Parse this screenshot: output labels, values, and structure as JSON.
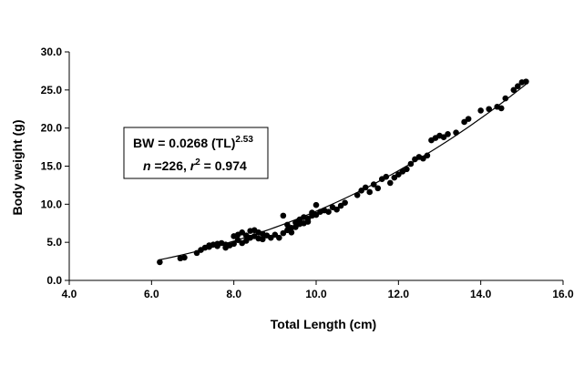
{
  "chart_data": {
    "type": "scatter",
    "xlabel": "Total Length (cm)",
    "ylabel": "Body weight (g)",
    "xlim": [
      4.0,
      16.0
    ],
    "ylim": [
      0.0,
      30.0
    ],
    "xticks": [
      "4.0",
      "6.0",
      "8.0",
      "10.0",
      "12.0",
      "14.0",
      "16.0"
    ],
    "yticks": [
      "0.0",
      "5.0",
      "10.0",
      "15.0",
      "20.0",
      "25.0",
      "30.0"
    ],
    "grid": false,
    "marker_color": "#000000",
    "annotation": {
      "line1": "BW = 0.0268 (TL)",
      "line1_exp": "2.53",
      "n_label": "n",
      "n_value": " =226, ",
      "r_label": "r",
      "r_exp": "2",
      "r_value": " = 0.974"
    },
    "fit": {
      "type": "power",
      "a": 0.0268,
      "b": 2.53,
      "x_range": [
        6.2,
        15.1
      ]
    },
    "points": [
      [
        6.2,
        2.4
      ],
      [
        6.7,
        2.9
      ],
      [
        6.8,
        3.0
      ],
      [
        7.1,
        3.6
      ],
      [
        7.2,
        4.0
      ],
      [
        7.3,
        4.3
      ],
      [
        7.4,
        4.6
      ],
      [
        7.4,
        4.4
      ],
      [
        7.5,
        4.7
      ],
      [
        7.6,
        4.5
      ],
      [
        7.6,
        4.8
      ],
      [
        7.7,
        4.9
      ],
      [
        7.8,
        4.7
      ],
      [
        7.8,
        4.3
      ],
      [
        7.9,
        4.6
      ],
      [
        8.0,
        4.8
      ],
      [
        8.0,
        5.8
      ],
      [
        8.1,
        6.0
      ],
      [
        8.1,
        5.3
      ],
      [
        8.2,
        4.9
      ],
      [
        8.2,
        6.3
      ],
      [
        8.3,
        5.9
      ],
      [
        8.3,
        5.2
      ],
      [
        8.4,
        6.5
      ],
      [
        8.4,
        5.6
      ],
      [
        8.5,
        6.6
      ],
      [
        8.5,
        5.8
      ],
      [
        8.6,
        6.3
      ],
      [
        8.6,
        5.5
      ],
      [
        8.7,
        6.1
      ],
      [
        8.7,
        5.4
      ],
      [
        8.8,
        5.9
      ],
      [
        8.9,
        5.6
      ],
      [
        9.0,
        6.0
      ],
      [
        9.1,
        5.6
      ],
      [
        9.2,
        8.5
      ],
      [
        9.2,
        6.2
      ],
      [
        9.3,
        6.6
      ],
      [
        9.3,
        7.3
      ],
      [
        9.4,
        6.9
      ],
      [
        9.4,
        6.3
      ],
      [
        9.5,
        7.6
      ],
      [
        9.5,
        7.0
      ],
      [
        9.6,
        8.0
      ],
      [
        9.6,
        7.4
      ],
      [
        9.7,
        8.3
      ],
      [
        9.7,
        7.5
      ],
      [
        9.8,
        8.1
      ],
      [
        9.8,
        7.7
      ],
      [
        9.9,
        8.5
      ],
      [
        9.9,
        8.9
      ],
      [
        10.0,
        8.6
      ],
      [
        10.0,
        9.9
      ],
      [
        10.1,
        9.0
      ],
      [
        10.2,
        9.2
      ],
      [
        10.3,
        9.0
      ],
      [
        10.4,
        9.6
      ],
      [
        10.5,
        9.3
      ],
      [
        10.6,
        9.8
      ],
      [
        10.7,
        10.2
      ],
      [
        11.0,
        11.2
      ],
      [
        11.1,
        11.8
      ],
      [
        11.2,
        12.2
      ],
      [
        11.3,
        11.6
      ],
      [
        11.4,
        12.6
      ],
      [
        11.5,
        12.1
      ],
      [
        11.6,
        13.3
      ],
      [
        11.7,
        13.6
      ],
      [
        11.8,
        12.8
      ],
      [
        11.9,
        13.5
      ],
      [
        12.0,
        13.9
      ],
      [
        12.1,
        14.3
      ],
      [
        12.2,
        14.6
      ],
      [
        12.3,
        15.3
      ],
      [
        12.4,
        15.9
      ],
      [
        12.5,
        16.2
      ],
      [
        12.6,
        16.0
      ],
      [
        12.7,
        16.4
      ],
      [
        12.8,
        18.4
      ],
      [
        12.9,
        18.7
      ],
      [
        13.0,
        19.0
      ],
      [
        13.1,
        18.8
      ],
      [
        13.2,
        19.2
      ],
      [
        13.4,
        19.4
      ],
      [
        13.6,
        20.8
      ],
      [
        13.7,
        21.2
      ],
      [
        14.0,
        22.3
      ],
      [
        14.2,
        22.5
      ],
      [
        14.4,
        22.8
      ],
      [
        14.5,
        22.6
      ],
      [
        14.6,
        23.9
      ],
      [
        14.8,
        25.0
      ],
      [
        14.9,
        25.5
      ],
      [
        15.0,
        26.0
      ],
      [
        15.1,
        26.1
      ]
    ]
  }
}
